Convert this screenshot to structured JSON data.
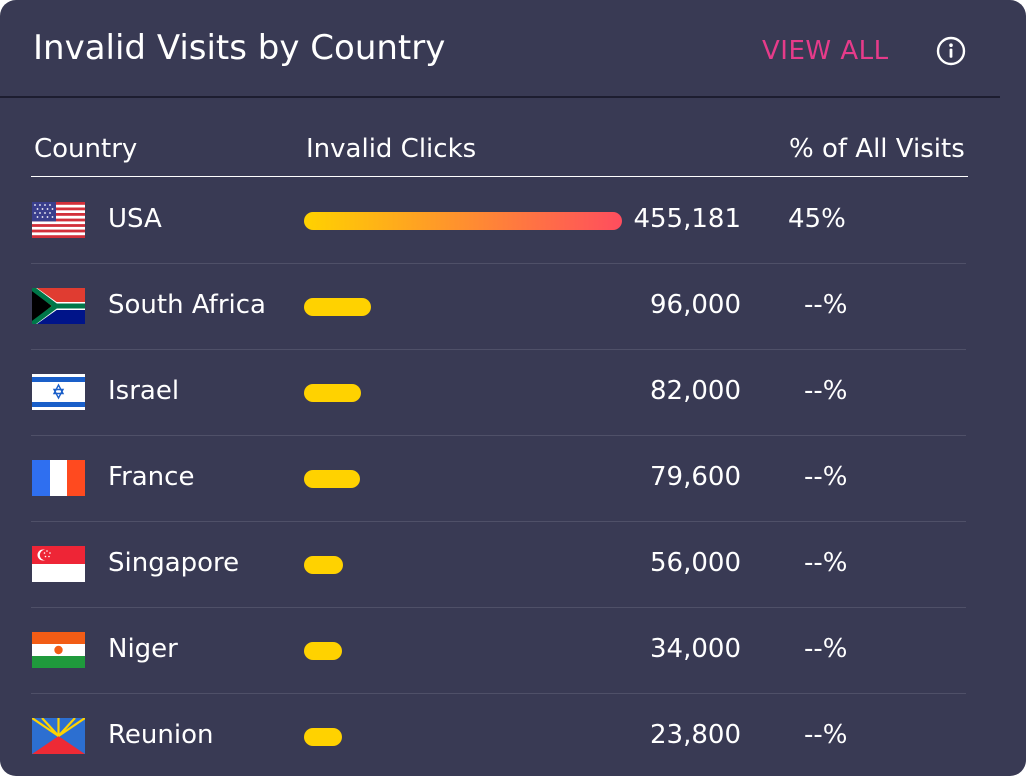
{
  "widget": {
    "title": "Invalid Visits by Country",
    "view_all_label": "VIEW ALL",
    "info_icon": "info-circle-icon"
  },
  "columns": {
    "country": "Country",
    "invalid_clicks": "Invalid Clicks",
    "percent": "% of All Visits"
  },
  "colors": {
    "accent": "#e63b8a",
    "bar_yellow": "#ffd200",
    "bar_red": "#ff4d5e",
    "background": "#393a54"
  },
  "rows": [
    {
      "country": "USA",
      "flag": "usa-flag-icon",
      "clicks": "455,181",
      "clicks_value": 455181,
      "percent": "45%"
    },
    {
      "country": "South Africa",
      "flag": "south-africa-flag-icon",
      "clicks": "96,000",
      "clicks_value": 96000,
      "percent": "--%"
    },
    {
      "country": "Israel",
      "flag": "israel-flag-icon",
      "clicks": "82,000",
      "clicks_value": 82000,
      "percent": "--%"
    },
    {
      "country": "France",
      "flag": "france-flag-icon",
      "clicks": "79,600",
      "clicks_value": 79600,
      "percent": "--%"
    },
    {
      "country": "Singapore",
      "flag": "singapore-flag-icon",
      "clicks": "56,000",
      "clicks_value": 56000,
      "percent": "--%"
    },
    {
      "country": "Niger",
      "flag": "niger-flag-icon",
      "clicks": "34,000",
      "clicks_value": 34000,
      "percent": "--%"
    },
    {
      "country": "Reunion",
      "flag": "reunion-flag-icon",
      "clicks": "23,800",
      "clicks_value": 23800,
      "percent": "--%"
    }
  ]
}
